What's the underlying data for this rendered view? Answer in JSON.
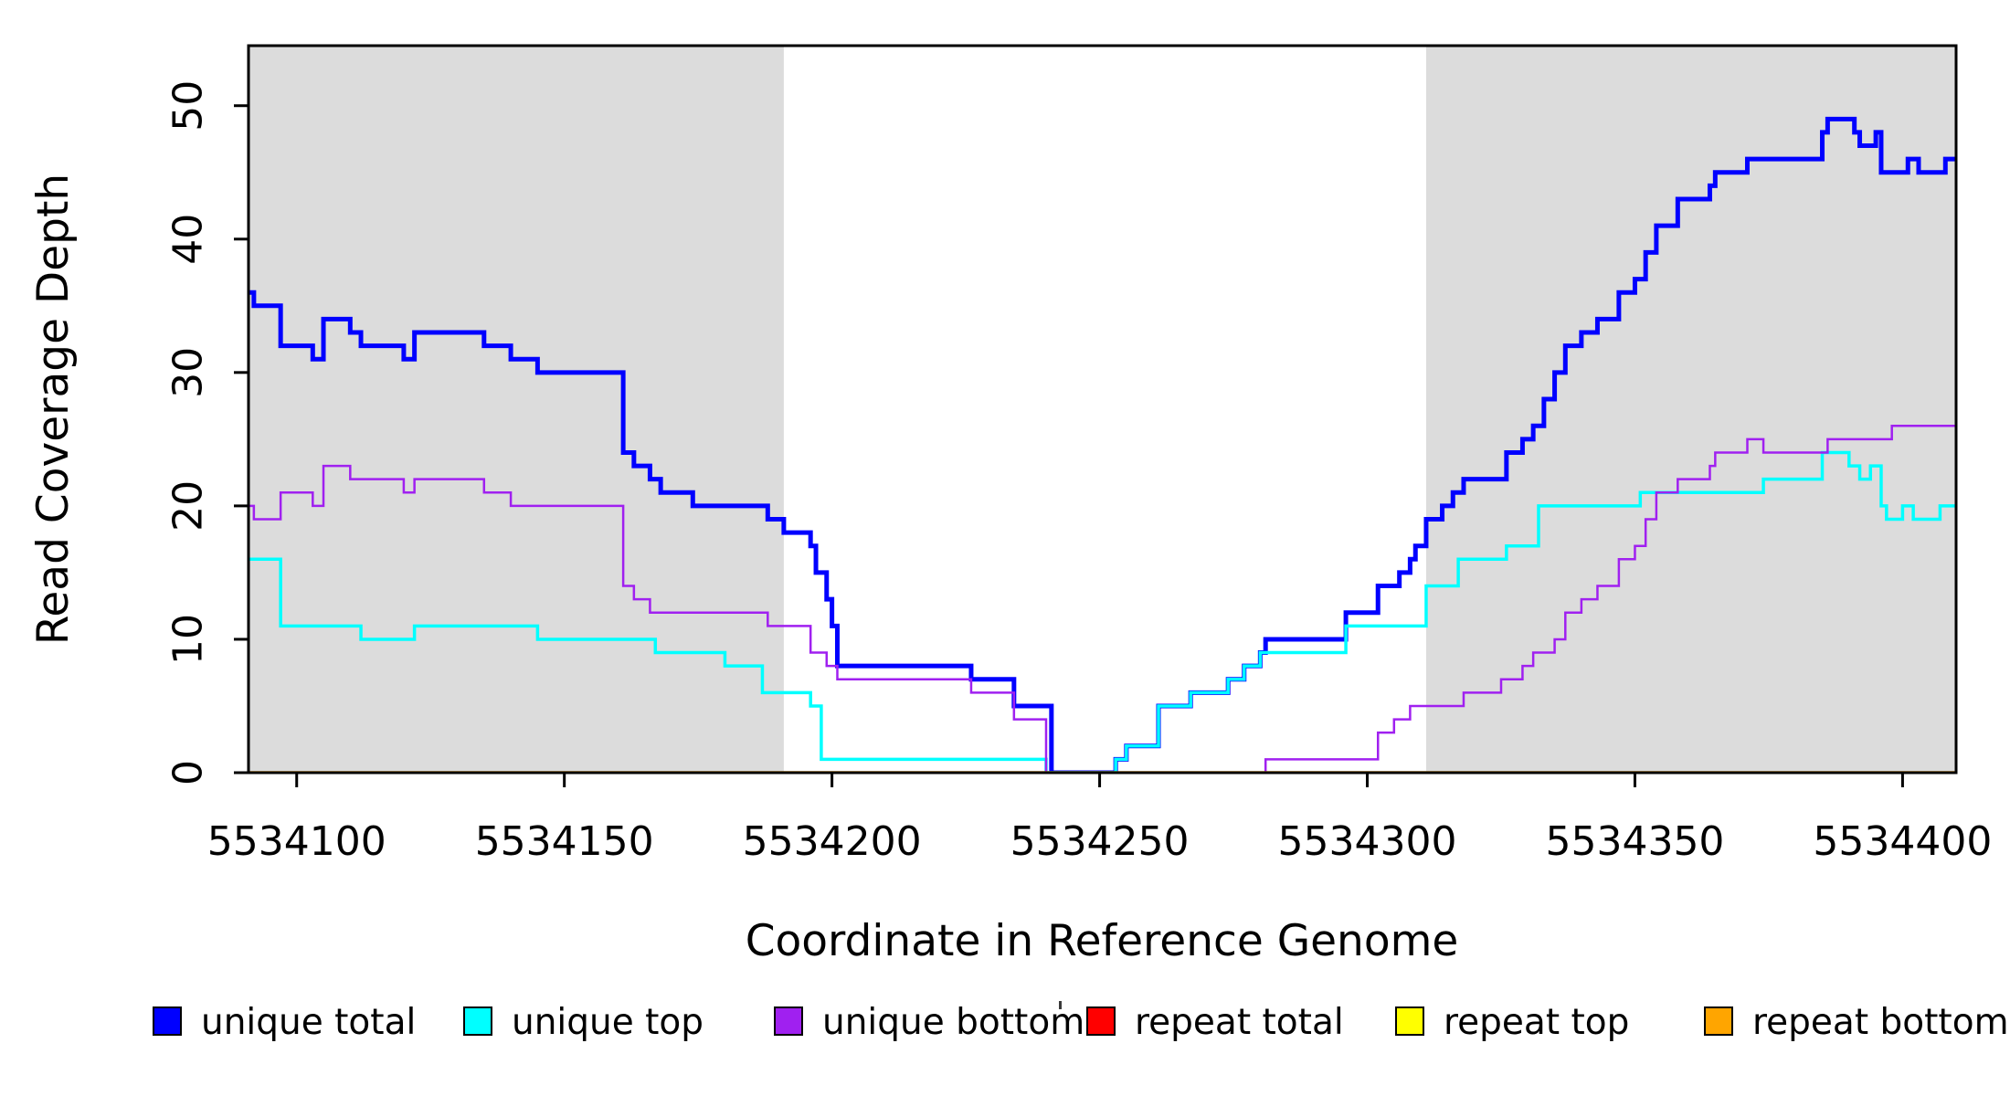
{
  "figure": {
    "background": "#FFFFFF",
    "axis_color": "#000000",
    "band_color": "#DCDCDC"
  },
  "chart_data": {
    "type": "line",
    "step": true,
    "title": "",
    "xlabel": "Coordinate in Reference Genome",
    "ylabel": "Read Coverage Depth",
    "xlim": [
      5534091,
      5534410
    ],
    "ylim": [
      0,
      54.5
    ],
    "x_ticks": [
      5534100,
      5534150,
      5534200,
      5534250,
      5534300,
      5534350,
      5534400
    ],
    "y_ticks": [
      0,
      10,
      20,
      30,
      40,
      50
    ],
    "grid": false,
    "legend_position": "bottom",
    "shaded_regions": [
      {
        "x0": 5534091,
        "x1": 5534191,
        "color": "#DCDCDC"
      },
      {
        "x0": 5534311,
        "x1": 5534410,
        "color": "#DCDCDC"
      }
    ],
    "series": [
      {
        "name": "unique total",
        "color": "#0000FF",
        "width": 5,
        "points": [
          [
            5534091,
            36
          ],
          [
            5534092,
            35
          ],
          [
            5534097,
            32
          ],
          [
            5534103,
            31
          ],
          [
            5534105,
            34
          ],
          [
            5534110,
            33
          ],
          [
            5534112,
            32
          ],
          [
            5534120,
            31
          ],
          [
            5534122,
            33
          ],
          [
            5534135,
            32
          ],
          [
            5534140,
            31
          ],
          [
            5534145,
            30
          ],
          [
            5534161,
            24
          ],
          [
            5534163,
            23
          ],
          [
            5534166,
            22
          ],
          [
            5534168,
            21
          ],
          [
            5534174,
            20
          ],
          [
            5534188,
            19
          ],
          [
            5534191,
            18
          ],
          [
            5534196,
            17
          ],
          [
            5534197,
            15
          ],
          [
            5534199,
            13
          ],
          [
            5534200,
            11
          ],
          [
            5534201,
            8
          ],
          [
            5534226,
            7
          ],
          [
            5534234,
            5
          ],
          [
            5534241,
            0
          ],
          [
            5534253,
            1
          ],
          [
            5534255,
            2
          ],
          [
            5534261,
            5
          ],
          [
            5534267,
            6
          ],
          [
            5534274,
            7
          ],
          [
            5534277,
            8
          ],
          [
            5534280,
            9
          ],
          [
            5534281,
            10
          ],
          [
            5534296,
            12
          ],
          [
            5534302,
            14
          ],
          [
            5534306,
            15
          ],
          [
            5534308,
            16
          ],
          [
            5534309,
            17
          ],
          [
            5534311,
            19
          ],
          [
            5534314,
            20
          ],
          [
            5534316,
            21
          ],
          [
            5534318,
            22
          ],
          [
            5534326,
            24
          ],
          [
            5534329,
            25
          ],
          [
            5534331,
            26
          ],
          [
            5534333,
            28
          ],
          [
            5534335,
            30
          ],
          [
            5534337,
            32
          ],
          [
            5534340,
            33
          ],
          [
            5534343,
            34
          ],
          [
            5534347,
            36
          ],
          [
            5534350,
            37
          ],
          [
            5534352,
            39
          ],
          [
            5534354,
            41
          ],
          [
            5534358,
            43
          ],
          [
            5534364,
            44
          ],
          [
            5534365,
            45
          ],
          [
            5534371,
            46
          ],
          [
            5534385,
            48
          ],
          [
            5534386,
            49
          ],
          [
            5534391,
            48
          ],
          [
            5534392,
            47
          ],
          [
            5534395,
            48
          ],
          [
            5534396,
            45
          ],
          [
            5534401,
            46
          ],
          [
            5534403,
            45
          ],
          [
            5534408,
            46
          ]
        ]
      },
      {
        "name": "unique top",
        "color": "#00FFFF",
        "width": 3.5,
        "points": [
          [
            5534091,
            16
          ],
          [
            5534097,
            11
          ],
          [
            5534112,
            10
          ],
          [
            5534122,
            11
          ],
          [
            5534145,
            10
          ],
          [
            5534167,
            9
          ],
          [
            5534180,
            8
          ],
          [
            5534187,
            6
          ],
          [
            5534196,
            5
          ],
          [
            5534198,
            1
          ],
          [
            5534240,
            0
          ],
          [
            5534253,
            1
          ],
          [
            5534255,
            2
          ],
          [
            5534261,
            5
          ],
          [
            5534267,
            6
          ],
          [
            5534274,
            7
          ],
          [
            5534277,
            8
          ],
          [
            5534280,
            9
          ],
          [
            5534296,
            11
          ],
          [
            5534311,
            14
          ],
          [
            5534317,
            16
          ],
          [
            5534326,
            17
          ],
          [
            5534332,
            20
          ],
          [
            5534351,
            21
          ],
          [
            5534374,
            22
          ],
          [
            5534385,
            24
          ],
          [
            5534390,
            23
          ],
          [
            5534392,
            22
          ],
          [
            5534394,
            23
          ],
          [
            5534396,
            20
          ],
          [
            5534397,
            19
          ],
          [
            5534400,
            20
          ],
          [
            5534402,
            19
          ],
          [
            5534407,
            20
          ]
        ]
      },
      {
        "name": "unique bottom",
        "color": "#A020F0",
        "width": 2.5,
        "points": [
          [
            5534091,
            20
          ],
          [
            5534092,
            19
          ],
          [
            5534097,
            21
          ],
          [
            5534103,
            20
          ],
          [
            5534105,
            23
          ],
          [
            5534110,
            22
          ],
          [
            5534120,
            21
          ],
          [
            5534122,
            22
          ],
          [
            5534135,
            21
          ],
          [
            5534140,
            20
          ],
          [
            5534161,
            14
          ],
          [
            5534163,
            13
          ],
          [
            5534166,
            12
          ],
          [
            5534188,
            11
          ],
          [
            5534196,
            9
          ],
          [
            5534199,
            8
          ],
          [
            5534201,
            7
          ],
          [
            5534226,
            6
          ],
          [
            5534234,
            4
          ],
          [
            5534240,
            0
          ],
          [
            5534281,
            1
          ],
          [
            5534302,
            3
          ],
          [
            5534305,
            4
          ],
          [
            5534308,
            5
          ],
          [
            5534318,
            6
          ],
          [
            5534325,
            7
          ],
          [
            5534329,
            8
          ],
          [
            5534331,
            9
          ],
          [
            5534335,
            10
          ],
          [
            5534337,
            12
          ],
          [
            5534340,
            13
          ],
          [
            5534343,
            14
          ],
          [
            5534347,
            16
          ],
          [
            5534350,
            17
          ],
          [
            5534352,
            19
          ],
          [
            5534354,
            21
          ],
          [
            5534358,
            22
          ],
          [
            5534364,
            23
          ],
          [
            5534365,
            24
          ],
          [
            5534371,
            25
          ],
          [
            5534374,
            24
          ],
          [
            5534386,
            25
          ],
          [
            5534398,
            26
          ]
        ]
      },
      {
        "name": "repeat total",
        "color": "#FF0000",
        "width": 2.5,
        "points": [
          [
            5534091,
            0
          ]
        ]
      },
      {
        "name": "repeat top",
        "color": "#FFFF00",
        "width": 2.5,
        "points": [
          [
            5534091,
            0
          ]
        ]
      },
      {
        "name": "repeat bottom",
        "color": "#FFA500",
        "width": 3.5,
        "points": [
          [
            5534091,
            0
          ]
        ]
      }
    ]
  }
}
